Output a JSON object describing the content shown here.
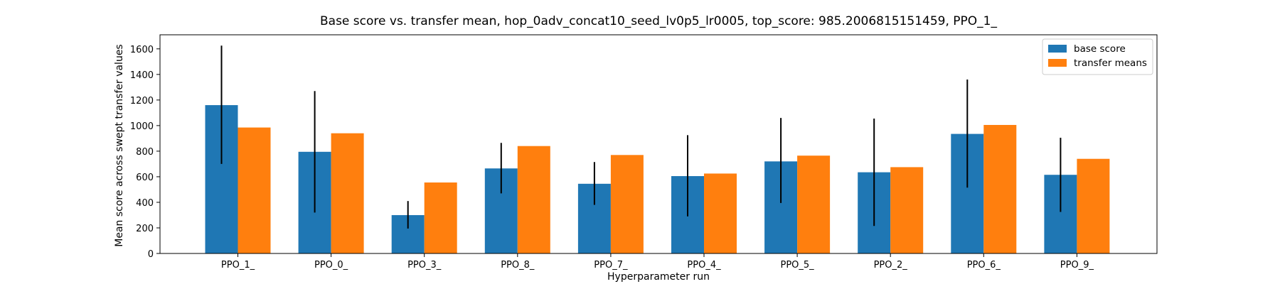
{
  "chart_data": {
    "type": "bar",
    "title": "Base score vs. transfer mean, hop_0adv_concat10_seed_lv0p5_lr0005, top_score: 985.2006815151459, PPO_1_",
    "xlabel": "Hyperparameter run",
    "ylabel": "Mean score across swept transfer values",
    "ylim": [
      0,
      1710
    ],
    "yticks": [
      0,
      200,
      400,
      600,
      800,
      1000,
      1200,
      1400,
      1600
    ],
    "categories": [
      "PPO_1_",
      "PPO_0_",
      "PPO_3_",
      "PPO_8_",
      "PPO_7_",
      "PPO_4_",
      "PPO_5_",
      "PPO_2_",
      "PPO_6_",
      "PPO_9_"
    ],
    "series": [
      {
        "name": "base score",
        "color": "#1f77b4",
        "values": [
          1160,
          795,
          300,
          665,
          545,
          605,
          720,
          635,
          935,
          615
        ],
        "error_low": [
          700,
          320,
          195,
          470,
          380,
          290,
          395,
          215,
          515,
          325
        ],
        "error_high": [
          1625,
          1270,
          410,
          865,
          715,
          925,
          1060,
          1055,
          1360,
          905
        ]
      },
      {
        "name": "transfer means",
        "color": "#ff7f0e",
        "values": [
          985,
          940,
          555,
          840,
          770,
          625,
          765,
          675,
          1005,
          740
        ]
      }
    ],
    "legend_position": "top-right",
    "grid": false
  }
}
